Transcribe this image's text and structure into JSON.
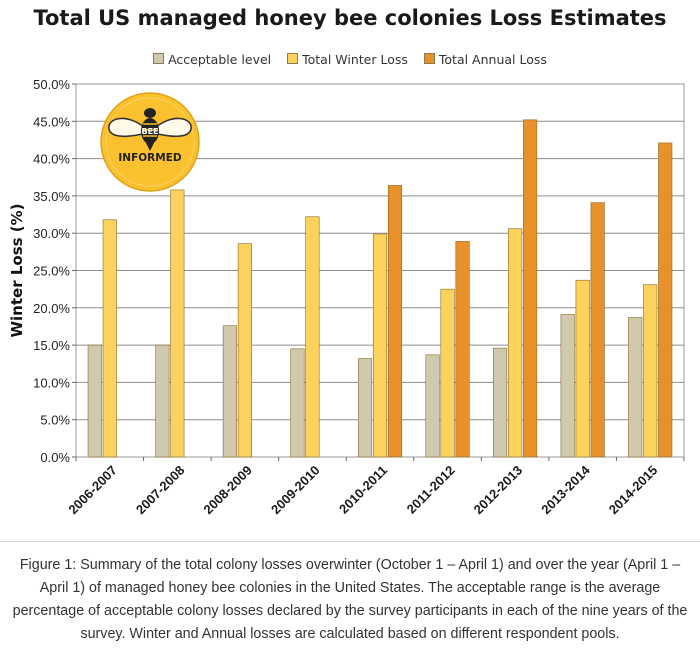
{
  "chart_data": {
    "type": "bar",
    "title": "Total US managed honey bee colonies Loss Estimates",
    "xlabel": "",
    "ylabel": "Winter Loss (%)",
    "categories": [
      "2006-2007",
      "2007-2008",
      "2008-2009",
      "2009-2010",
      "2010-2011",
      "2011-2012",
      "2012-2013",
      "2013-2014",
      "2014-2015"
    ],
    "y_ticks": [
      "0.0%",
      "5.0%",
      "10.0%",
      "15.0%",
      "20.0%",
      "25.0%",
      "30.0%",
      "35.0%",
      "40.0%",
      "45.0%",
      "50.0%"
    ],
    "ylim": [
      0,
      50
    ],
    "grid": true,
    "legend_position": "top-center",
    "series": [
      {
        "name": "Acceptable level",
        "color": "#d1c9ad",
        "values": [
          15.0,
          15.0,
          17.6,
          14.5,
          13.2,
          13.7,
          14.6,
          19.1,
          18.7
        ]
      },
      {
        "name": "Total Winter Loss",
        "color": "#fbd35c",
        "values": [
          31.8,
          35.8,
          28.6,
          32.2,
          29.9,
          22.5,
          30.6,
          23.7,
          23.1
        ]
      },
      {
        "name": "Total Annual Loss",
        "color": "#e8902a",
        "values": [
          null,
          null,
          null,
          null,
          36.4,
          28.9,
          45.2,
          34.1,
          42.1
        ]
      }
    ]
  },
  "logo": {
    "line1": "BEE",
    "line2": "INFORMED"
  },
  "caption": "Figure 1: Summary of the total colony losses overwinter (October 1 – April 1) and over the year (April 1 – April 1) of managed honey bee colonies in the United States. The acceptable range is the average percentage of acceptable colony losses declared by the survey participants in each of the nine years of the survey. Winter and Annual losses are calculated based on different respondent pools."
}
